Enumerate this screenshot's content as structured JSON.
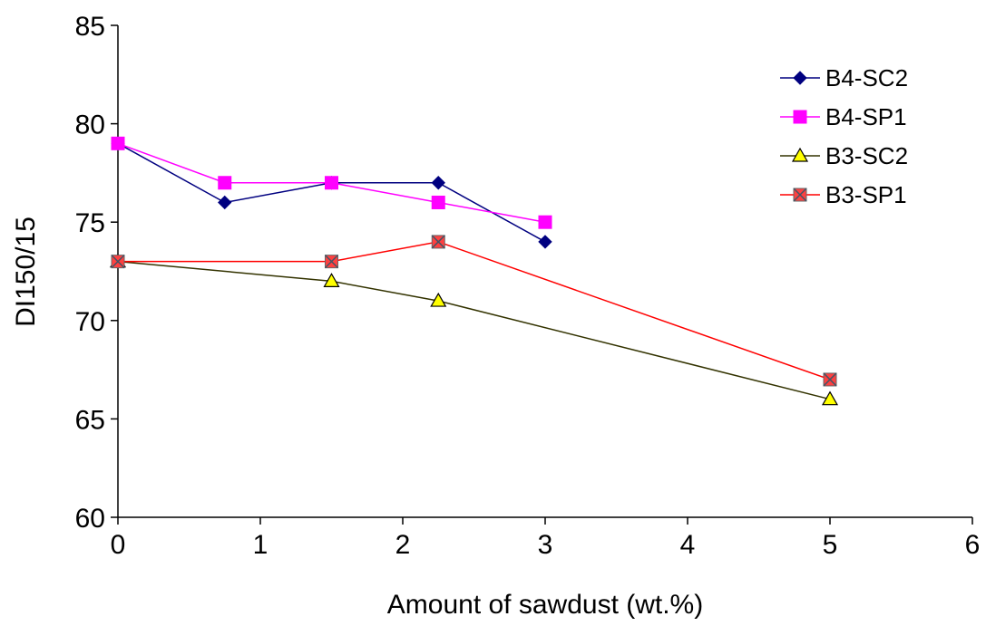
{
  "chart_data": {
    "type": "line",
    "title": "",
    "xlabel": "Amount of sawdust (wt.%)",
    "ylabel": "DI150/15",
    "xlim": [
      0,
      6
    ],
    "ylim": [
      60,
      85
    ],
    "xticks": [
      0,
      1,
      2,
      3,
      4,
      5,
      6
    ],
    "yticks": [
      60,
      65,
      70,
      75,
      80,
      85
    ],
    "grid": false,
    "legend_position": "top-right",
    "series": [
      {
        "name": "B4-SC2",
        "marker": "diamond",
        "color": "#000080",
        "marker_fill": "#000080",
        "x": [
          0,
          0.75,
          1.5,
          2.25,
          3
        ],
        "y": [
          79,
          76,
          77,
          77,
          74
        ]
      },
      {
        "name": "B4-SP1",
        "marker": "square",
        "color": "#ff00ff",
        "marker_fill": "#ff00ff",
        "x": [
          0,
          0.75,
          1.5,
          2.25,
          3
        ],
        "y": [
          79,
          77,
          77,
          76,
          75
        ]
      },
      {
        "name": "B3-SC2",
        "marker": "triangle",
        "color": "#333300",
        "marker_fill": "#ffff00",
        "x": [
          0,
          1.5,
          2.25,
          5
        ],
        "y": [
          73,
          72,
          71,
          66
        ]
      },
      {
        "name": "B3-SP1",
        "marker": "square-x",
        "color": "#ff0000",
        "marker_fill": "#ff4040",
        "x": [
          0,
          1.5,
          2.25,
          5
        ],
        "y": [
          73,
          73,
          74,
          67
        ]
      }
    ]
  }
}
